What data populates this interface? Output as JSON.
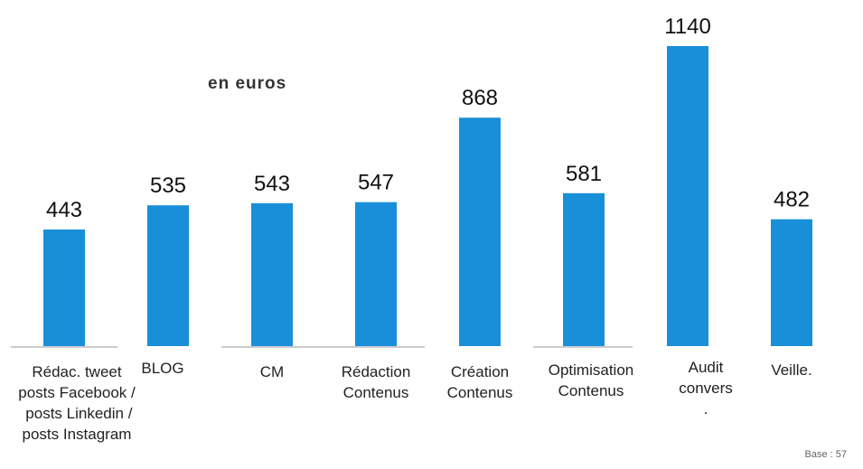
{
  "chart_data": {
    "type": "bar",
    "subtitle": "en euros",
    "note": "Base : 57",
    "categories": [
      "Rédac. tweet\nposts Facebook /\n posts Linkedin /\nposts Instagram",
      "BLOG",
      "CM",
      "Rédaction\nContenus",
      "Création\nContenus",
      "Optimisation\nContenus",
      "Audit\nconvers\n.",
      "Veille."
    ],
    "values": [
      443,
      535,
      543,
      547,
      868,
      581,
      1140,
      482
    ],
    "color": "#1a8fd9"
  }
}
